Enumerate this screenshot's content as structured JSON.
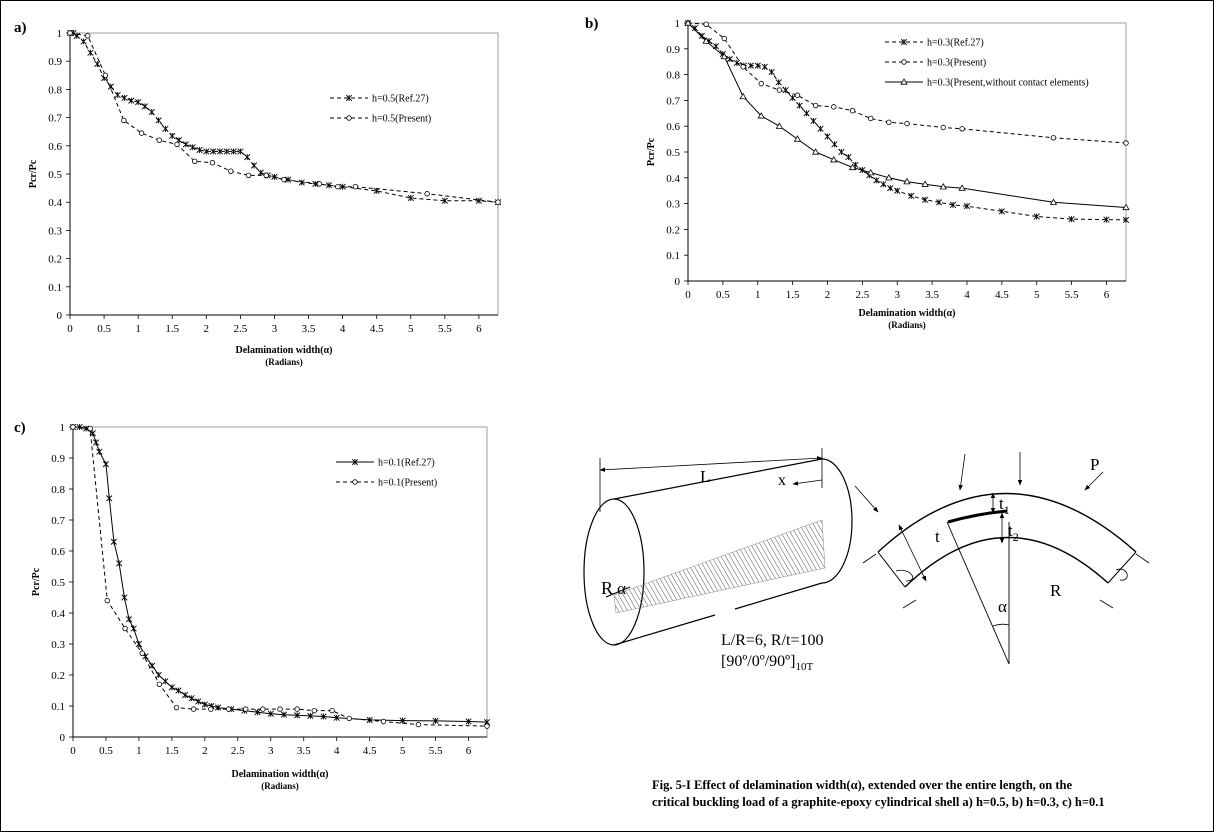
{
  "figure": {
    "caption_line1": "Fig. 5-I Effect of delamination width(α), extended over the entire length, on the",
    "caption_line2": "critical buckling load of a graphite-epoxy cylindrical shell a)  h=0.5, b)  h=0.3, c)  h=0.1"
  },
  "chart_data": [
    {
      "type": "line",
      "panel_label": "a)",
      "xlabel": "Delamination width(α)",
      "xlabel_sub": "(Radians)",
      "ylabel": "Pcr/Pc",
      "xlim": [
        0,
        6.28
      ],
      "ylim": [
        0,
        1
      ],
      "xticks": [
        "0",
        "0.5",
        "1",
        "1.5",
        "2",
        "2.5",
        "3",
        "3.5",
        "4",
        "4.5",
        "5",
        "5.5",
        "6"
      ],
      "yticks": [
        "0",
        "0.1",
        "0.2",
        "0.3",
        "0.4",
        "0.5",
        "0.6",
        "0.7",
        "0.8",
        "0.9",
        "1"
      ],
      "legend_position": "right",
      "series": [
        {
          "name": "h=0.5(Ref.27)",
          "dash": "4,3",
          "marker": "star",
          "points": [
            [
              0,
              1
            ],
            [
              0.05,
              1
            ],
            [
              0.1,
              0.99
            ],
            [
              0.2,
              0.97
            ],
            [
              0.3,
              0.93
            ],
            [
              0.4,
              0.89
            ],
            [
              0.5,
              0.84
            ],
            [
              0.6,
              0.81
            ],
            [
              0.7,
              0.78
            ],
            [
              0.8,
              0.77
            ],
            [
              0.9,
              0.76
            ],
            [
              1.0,
              0.755
            ],
            [
              1.1,
              0.74
            ],
            [
              1.2,
              0.72
            ],
            [
              1.3,
              0.69
            ],
            [
              1.4,
              0.66
            ],
            [
              1.5,
              0.635
            ],
            [
              1.6,
              0.62
            ],
            [
              1.7,
              0.605
            ],
            [
              1.8,
              0.595
            ],
            [
              1.9,
              0.585
            ],
            [
              2.0,
              0.58
            ],
            [
              2.1,
              0.58
            ],
            [
              2.2,
              0.58
            ],
            [
              2.3,
              0.58
            ],
            [
              2.4,
              0.58
            ],
            [
              2.5,
              0.58
            ],
            [
              2.6,
              0.56
            ],
            [
              2.7,
              0.53
            ],
            [
              2.8,
              0.505
            ],
            [
              2.9,
              0.495
            ],
            [
              3.0,
              0.49
            ],
            [
              3.2,
              0.48
            ],
            [
              3.4,
              0.47
            ],
            [
              3.6,
              0.465
            ],
            [
              3.8,
              0.46
            ],
            [
              4.0,
              0.455
            ],
            [
              4.5,
              0.44
            ],
            [
              5.0,
              0.415
            ],
            [
              5.5,
              0.405
            ],
            [
              6.0,
              0.405
            ],
            [
              6.28,
              0.4
            ]
          ]
        },
        {
          "name": "h=0.5(Present)",
          "dash": "4,3",
          "marker": "circle",
          "points": [
            [
              0,
              1
            ],
            [
              0.26,
              0.99
            ],
            [
              0.52,
              0.85
            ],
            [
              0.79,
              0.69
            ],
            [
              1.05,
              0.645
            ],
            [
              1.31,
              0.62
            ],
            [
              1.57,
              0.605
            ],
            [
              1.83,
              0.545
            ],
            [
              2.09,
              0.54
            ],
            [
              2.36,
              0.51
            ],
            [
              2.62,
              0.495
            ],
            [
              2.88,
              0.495
            ],
            [
              3.14,
              0.48
            ],
            [
              3.66,
              0.465
            ],
            [
              3.93,
              0.455
            ],
            [
              4.19,
              0.455
            ],
            [
              5.24,
              0.43
            ],
            [
              6.28,
              0.4
            ]
          ]
        }
      ]
    },
    {
      "type": "line",
      "panel_label": "b)",
      "xlabel": "Delamination width(α)",
      "xlabel_sub": "(Radians)",
      "ylabel": "Pcr/Pc",
      "xlim": [
        0,
        6.28
      ],
      "ylim": [
        0,
        1
      ],
      "xticks": [
        "0",
        "0.5",
        "1",
        "1.5",
        "2",
        "2.5",
        "3",
        "3.5",
        "4",
        "4.5",
        "5",
        "5.5",
        "6"
      ],
      "yticks": [
        "0",
        "0.1",
        "0.2",
        "0.3",
        "0.4",
        "0.5",
        "0.6",
        "0.7",
        "0.8",
        "0.9",
        "1"
      ],
      "legend_position": "top-right",
      "series": [
        {
          "name": "h=0.3(Ref.27)",
          "dash": "4,3",
          "marker": "star",
          "points": [
            [
              0,
              1
            ],
            [
              0.1,
              0.98
            ],
            [
              0.2,
              0.95
            ],
            [
              0.3,
              0.93
            ],
            [
              0.4,
              0.91
            ],
            [
              0.5,
              0.88
            ],
            [
              0.6,
              0.86
            ],
            [
              0.7,
              0.845
            ],
            [
              0.8,
              0.835
            ],
            [
              0.9,
              0.835
            ],
            [
              1.0,
              0.835
            ],
            [
              1.1,
              0.83
            ],
            [
              1.2,
              0.81
            ],
            [
              1.3,
              0.77
            ],
            [
              1.4,
              0.74
            ],
            [
              1.5,
              0.71
            ],
            [
              1.6,
              0.68
            ],
            [
              1.7,
              0.65
            ],
            [
              1.8,
              0.62
            ],
            [
              1.9,
              0.59
            ],
            [
              2.0,
              0.56
            ],
            [
              2.1,
              0.53
            ],
            [
              2.2,
              0.5
            ],
            [
              2.3,
              0.48
            ],
            [
              2.4,
              0.45
            ],
            [
              2.5,
              0.43
            ],
            [
              2.6,
              0.41
            ],
            [
              2.7,
              0.39
            ],
            [
              2.8,
              0.375
            ],
            [
              2.9,
              0.36
            ],
            [
              3.0,
              0.35
            ],
            [
              3.2,
              0.33
            ],
            [
              3.4,
              0.315
            ],
            [
              3.6,
              0.305
            ],
            [
              3.8,
              0.295
            ],
            [
              4.0,
              0.29
            ],
            [
              4.5,
              0.27
            ],
            [
              5.0,
              0.25
            ],
            [
              5.5,
              0.24
            ],
            [
              6.0,
              0.238
            ],
            [
              6.28,
              0.237
            ]
          ]
        },
        {
          "name": "h=0.3(Present)",
          "dash": "4,3",
          "marker": "circle",
          "points": [
            [
              0,
              1
            ],
            [
              0.26,
              0.995
            ],
            [
              0.52,
              0.94
            ],
            [
              0.79,
              0.83
            ],
            [
              1.05,
              0.765
            ],
            [
              1.31,
              0.74
            ],
            [
              1.57,
              0.72
            ],
            [
              1.83,
              0.68
            ],
            [
              2.09,
              0.675
            ],
            [
              2.36,
              0.66
            ],
            [
              2.62,
              0.63
            ],
            [
              2.88,
              0.615
            ],
            [
              3.14,
              0.61
            ],
            [
              3.66,
              0.595
            ],
            [
              3.93,
              0.59
            ],
            [
              5.24,
              0.555
            ],
            [
              6.28,
              0.535
            ]
          ]
        },
        {
          "name": "h=0.3(Present,without contact elements)",
          "dash": "",
          "marker": "triangle",
          "points": [
            [
              0,
              1
            ],
            [
              0.26,
              0.93
            ],
            [
              0.52,
              0.87
            ],
            [
              0.79,
              0.715
            ],
            [
              1.05,
              0.64
            ],
            [
              1.31,
              0.6
            ],
            [
              1.57,
              0.55
            ],
            [
              1.83,
              0.5
            ],
            [
              2.09,
              0.47
            ],
            [
              2.36,
              0.44
            ],
            [
              2.62,
              0.42
            ],
            [
              2.88,
              0.4
            ],
            [
              3.14,
              0.385
            ],
            [
              3.4,
              0.375
            ],
            [
              3.66,
              0.365
            ],
            [
              3.93,
              0.36
            ],
            [
              5.24,
              0.305
            ],
            [
              6.28,
              0.285
            ]
          ]
        }
      ]
    },
    {
      "type": "line",
      "panel_label": "c)",
      "xlabel": "Delamination width(α)",
      "xlabel_sub": "(Radians)",
      "ylabel": "Pcr/Pc",
      "xlim": [
        0,
        6.28
      ],
      "ylim": [
        0,
        1
      ],
      "xticks": [
        "0",
        "0.5",
        "1",
        "1.5",
        "2",
        "2.5",
        "3",
        "3.5",
        "4",
        "4.5",
        "5",
        "5.5",
        "6"
      ],
      "yticks": [
        "0",
        "0.1",
        "0.2",
        "0.3",
        "0.4",
        "0.5",
        "0.6",
        "0.7",
        "0.8",
        "0.9",
        "1"
      ],
      "legend_position": "top-right",
      "series": [
        {
          "name": "h=0.1(Ref.27)",
          "dash": "",
          "marker": "star",
          "points": [
            [
              0,
              1
            ],
            [
              0.1,
              1
            ],
            [
              0.2,
              0.995
            ],
            [
              0.3,
              0.98
            ],
            [
              0.35,
              0.95
            ],
            [
              0.4,
              0.92
            ],
            [
              0.5,
              0.88
            ],
            [
              0.55,
              0.77
            ],
            [
              0.62,
              0.63
            ],
            [
              0.7,
              0.56
            ],
            [
              0.78,
              0.45
            ],
            [
              0.85,
              0.38
            ],
            [
              0.92,
              0.35
            ],
            [
              1.0,
              0.3
            ],
            [
              1.1,
              0.26
            ],
            [
              1.2,
              0.23
            ],
            [
              1.3,
              0.2
            ],
            [
              1.4,
              0.18
            ],
            [
              1.5,
              0.16
            ],
            [
              1.6,
              0.15
            ],
            [
              1.7,
              0.135
            ],
            [
              1.8,
              0.125
            ],
            [
              1.9,
              0.115
            ],
            [
              2.0,
              0.105
            ],
            [
              2.1,
              0.1
            ],
            [
              2.2,
              0.095
            ],
            [
              2.4,
              0.09
            ],
            [
              2.6,
              0.085
            ],
            [
              2.8,
              0.08
            ],
            [
              3.0,
              0.075
            ],
            [
              3.2,
              0.072
            ],
            [
              3.4,
              0.07
            ],
            [
              3.6,
              0.068
            ],
            [
              3.8,
              0.066
            ],
            [
              4.0,
              0.062
            ],
            [
              4.5,
              0.055
            ],
            [
              5.0,
              0.053
            ],
            [
              5.5,
              0.052
            ],
            [
              6.0,
              0.05
            ],
            [
              6.28,
              0.048
            ]
          ]
        },
        {
          "name": "h=0.1(Present)",
          "dash": "4,3",
          "marker": "circle",
          "points": [
            [
              0,
              1
            ],
            [
              0.26,
              0.995
            ],
            [
              0.52,
              0.44
            ],
            [
              0.79,
              0.35
            ],
            [
              1.05,
              0.27
            ],
            [
              1.31,
              0.17
            ],
            [
              1.57,
              0.095
            ],
            [
              1.83,
              0.09
            ],
            [
              2.09,
              0.09
            ],
            [
              2.36,
              0.09
            ],
            [
              2.62,
              0.09
            ],
            [
              2.88,
              0.09
            ],
            [
              3.14,
              0.09
            ],
            [
              3.4,
              0.09
            ],
            [
              3.66,
              0.085
            ],
            [
              3.93,
              0.085
            ],
            [
              4.19,
              0.06
            ],
            [
              4.71,
              0.05
            ],
            [
              5.24,
              0.04
            ],
            [
              6.28,
              0.035
            ]
          ]
        }
      ]
    }
  ],
  "diagram": {
    "label_L": "L",
    "label_x": "x",
    "label_R_cyl": "R",
    "label_alpha_cyl": "α",
    "params_line1": "L/R=6, R/t=100",
    "params_line2_main": "[90º/0º/90º]",
    "params_line2_sub": "10T",
    "label_P": "P",
    "label_t": "t",
    "label_t1": "t",
    "label_t1_sub": "1",
    "label_t2": "t",
    "label_t2_sub": "2",
    "label_R_arc": "R",
    "label_alpha_arc": "α"
  }
}
